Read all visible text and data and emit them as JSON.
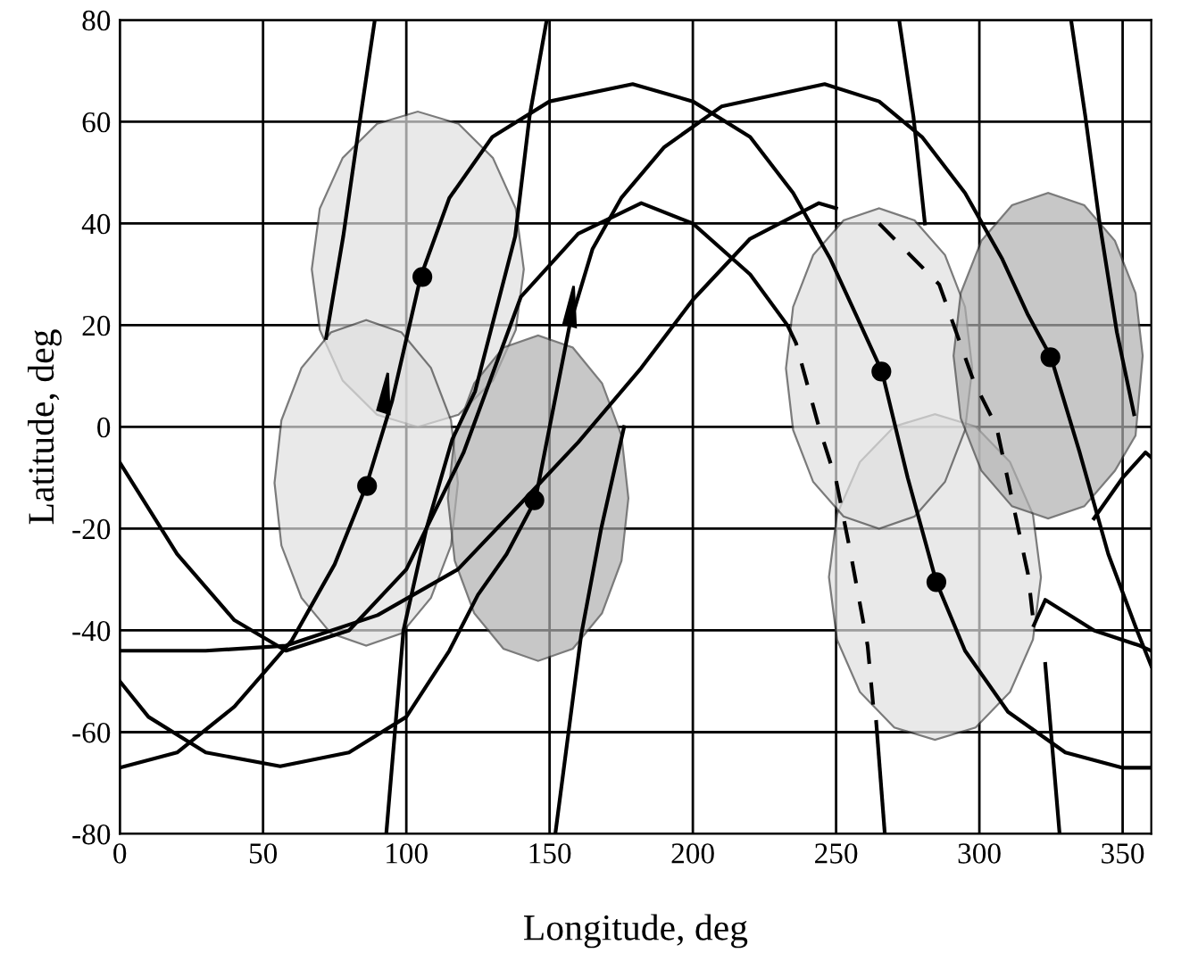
{
  "chart_data": {
    "type": "line",
    "xlabel": "Longitude, deg",
    "ylabel": "Latitude, deg",
    "xlim": [
      0,
      360
    ],
    "ylim": [
      -80,
      80
    ],
    "xticks": [
      0,
      50,
      100,
      150,
      200,
      250,
      300,
      350
    ],
    "yticks": [
      -80,
      -60,
      -40,
      -20,
      0,
      20,
      40,
      60,
      80
    ],
    "grid": true,
    "series": [
      {
        "type": "area",
        "color": "#e0e0e0",
        "x": [
          141,
          138.2,
          130.2,
          118.2,
          104,
          89.8,
          77.8,
          69.8,
          67,
          69.8,
          77.8,
          89.8,
          104,
          118.2,
          130.2,
          138.2
        ],
        "values": [
          31,
          42.9,
          52.9,
          59.6,
          62,
          59.6,
          52.9,
          42.9,
          31,
          19.1,
          9.1,
          2.4,
          0,
          2.4,
          9.1,
          19.1
        ]
      },
      {
        "type": "area",
        "color": "#e0e0e0",
        "x": [
          118,
          115.6,
          108.6,
          98.3,
          86,
          73.7,
          63.4,
          56.4,
          54,
          56.4,
          63.4,
          73.7,
          86,
          98.3,
          108.6,
          115.6
        ],
        "values": [
          -11,
          1.3,
          11.6,
          18.6,
          21,
          18.6,
          11.6,
          1.3,
          -11,
          -23.3,
          -33.6,
          -40.6,
          -43,
          -40.6,
          -33.6,
          -23.3
        ]
      },
      {
        "type": "area",
        "color": "#b0b0b0",
        "x": [
          177.5,
          175.1,
          168.3,
          158.1,
          146,
          133.9,
          123.7,
          116.9,
          114.5,
          116.9,
          123.7,
          133.9,
          146,
          158.1,
          168.3,
          175.1
        ],
        "values": [
          -14,
          -1.7,
          8.6,
          15.6,
          18,
          15.6,
          8.6,
          -1.7,
          -14,
          -26.3,
          -36.6,
          -43.6,
          -46,
          -43.6,
          -36.6,
          -26.3
        ]
      },
      {
        "type": "area",
        "color": "#e0e0e0",
        "x": [
          321.5,
          318.7,
          310.7,
          298.7,
          284.5,
          270.3,
          258.3,
          250.3,
          247.5,
          250.3,
          258.3,
          270.3,
          284.5,
          298.7,
          310.7,
          318.7
        ],
        "values": [
          -29.5,
          -17.2,
          -6.9,
          0.1,
          2.5,
          0.1,
          -6.9,
          -17.2,
          -29.5,
          -41.8,
          -52.1,
          -59.1,
          -61.5,
          -59.1,
          -52.1,
          -41.8
        ]
      },
      {
        "type": "area",
        "color": "#e0e0e0",
        "x": [
          297.5,
          295,
          288,
          277.4,
          265,
          252.6,
          242,
          235,
          232.5,
          235,
          242,
          252.6,
          265,
          277.4,
          288,
          295
        ],
        "values": [
          11.5,
          23.6,
          33.8,
          40.6,
          43,
          40.6,
          33.8,
          23.6,
          11.5,
          -0.6,
          -10.8,
          -17.6,
          -20,
          -17.6,
          -10.8,
          -0.6
        ]
      },
      {
        "type": "area",
        "color": "#b0b0b0",
        "x": [
          357,
          354.5,
          347.3,
          336.6,
          324,
          311.4,
          300.7,
          293.5,
          291,
          293.5,
          300.7,
          311.4,
          324,
          336.6,
          347.3,
          354.5
        ],
        "values": [
          14,
          26.3,
          36.6,
          43.6,
          46,
          43.6,
          36.6,
          26.3,
          14,
          1.7,
          -8.6,
          -15.6,
          -18,
          -15.6,
          -8.6,
          -1.7
        ]
      },
      {
        "color": "#000000",
        "x": [
          0,
          20,
          40,
          58,
          80,
          100,
          120,
          140,
          160,
          182,
          200,
          220,
          233
        ],
        "values": [
          -7,
          -25,
          -38,
          -44,
          -40,
          -28,
          -5,
          25.6,
          38,
          44,
          40,
          30,
          20
        ]
      },
      {
        "color": "#000000",
        "x": [
          0,
          30,
          58,
          90,
          118,
          140,
          160,
          182,
          200,
          220,
          244,
          250
        ],
        "values": [
          -44,
          -44,
          -43,
          -37,
          -28,
          -15,
          -3,
          11.6,
          25,
          37,
          44,
          43
        ]
      },
      {
        "color": "#000000",
        "x": [
          319,
          323,
          340,
          356,
          360
        ],
        "values": [
          -39,
          -34,
          -40,
          -43,
          -44
        ]
      },
      {
        "color": "#000000",
        "x": [
          340,
          350,
          358,
          360
        ],
        "values": [
          -18,
          -10,
          -5,
          -6
        ]
      },
      {
        "line_style": "dashed",
        "color": "#000000",
        "x": [
          265,
          286,
          298,
          306,
          317,
          319
        ],
        "values": [
          40,
          28,
          9,
          0,
          -29,
          -39
        ]
      },
      {
        "line_style": "dashed",
        "color": "#000000",
        "x": [
          233,
          236,
          244,
          250,
          255,
          261,
          263
        ],
        "values": [
          20,
          16.5,
          0,
          -10.5,
          -24.6,
          -43,
          -55
        ]
      },
      {
        "color": "#000000",
        "x": [
          89,
          84,
          78,
          72
        ],
        "values": [
          80,
          61,
          37.5,
          17.5
        ]
      },
      {
        "color": "#000000",
        "x": [
          93,
          99,
          107,
          116,
          124,
          138,
          143,
          149
        ],
        "values": [
          -80,
          -40,
          -20,
          -2.5,
          7,
          37.5,
          61,
          80
        ]
      },
      {
        "color": "#000000",
        "x": [
          152,
          161,
          168,
          176
        ],
        "values": [
          -80,
          -41,
          -20,
          0
        ]
      },
      {
        "color": "#000000",
        "x": [
          272,
          277,
          281
        ],
        "values": [
          80,
          61,
          40
        ]
      },
      {
        "color": "#000000",
        "x": [
          332,
          337,
          342,
          348,
          354
        ],
        "values": [
          80,
          61,
          40,
          18.6,
          2.5
        ]
      },
      {
        "color": "#000000",
        "x": [
          323,
          328
        ],
        "values": [
          -46.6,
          -80
        ]
      },
      {
        "color": "#000000",
        "x": [
          264,
          267
        ],
        "values": [
          -58,
          -80
        ]
      },
      {
        "color": "#000000",
        "x": [
          0,
          20,
          40,
          60,
          75,
          86,
          95,
          105,
          115,
          130,
          150,
          179,
          200,
          220,
          235,
          248,
          257,
          266,
          275,
          285,
          295,
          310,
          330,
          350,
          360
        ],
        "values": [
          -67,
          -64,
          -55,
          -42,
          -27,
          -11.6,
          5,
          29.5,
          45,
          57,
          64,
          67.4,
          64,
          57,
          46,
          33,
          22,
          10.9,
          -10,
          -30.5,
          -44,
          -56,
          -64,
          -67,
          -67
        ]
      },
      {
        "color": "#000000",
        "x": [
          0,
          10,
          30,
          56,
          80,
          100,
          115,
          125,
          135,
          145,
          157,
          165,
          175,
          190,
          210,
          246,
          265,
          280,
          295,
          308,
          317,
          325,
          335,
          345,
          355,
          360
        ],
        "values": [
          -50,
          -57,
          -64,
          -66.7,
          -64,
          -57,
          -44,
          -33,
          -25,
          -14.4,
          20,
          35,
          45,
          55,
          63,
          67.4,
          64,
          57,
          46,
          33,
          22,
          13.7,
          -5,
          -25,
          -40,
          -47
        ]
      },
      {
        "type": "scatter",
        "marker": "circle",
        "color": "#000000",
        "x": [
          105.6,
          86.3,
          144.7,
          265.8,
          324.8,
          285
        ],
        "values": [
          29.5,
          -11.6,
          -14.4,
          10.9,
          13.7,
          -30.5
        ]
      }
    ]
  }
}
